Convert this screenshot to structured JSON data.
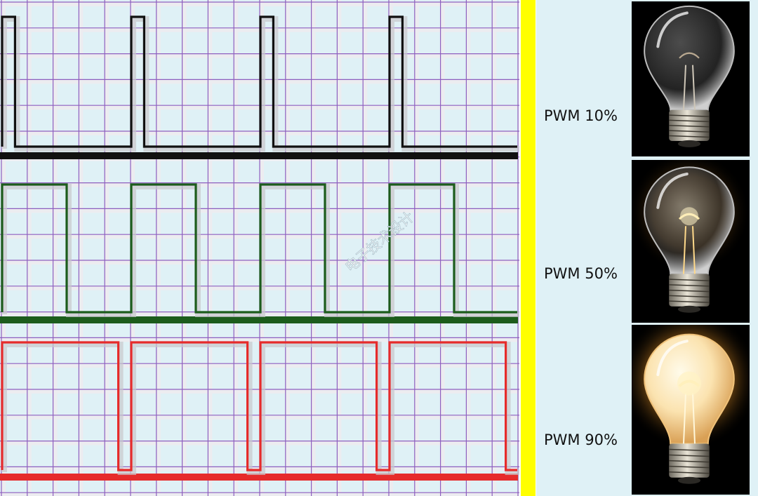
{
  "colors": {
    "background": "#dff1f6",
    "grid": "#8e5fbf",
    "divider": "#ffff00",
    "bulb_panel": "#000000"
  },
  "waveforms": [
    {
      "name": "pwm-10",
      "color": "#111111",
      "duty": 0.1,
      "periods": 4
    },
    {
      "name": "pwm-50",
      "color": "#1c5c1c",
      "duty": 0.5,
      "periods": 4
    },
    {
      "name": "pwm-90",
      "color": "#e62b2b",
      "duty": 0.9,
      "periods": 4
    }
  ],
  "bulbs": [
    {
      "label": "PWM 10%",
      "brightness": 0.1,
      "icon": "light-bulb-dim-icon"
    },
    {
      "label": "PWM 50%",
      "brightness": 0.5,
      "icon": "light-bulb-medium-icon"
    },
    {
      "label": "PWM 90%",
      "brightness": 0.9,
      "icon": "light-bulb-bright-icon"
    }
  ],
  "watermark": "电子技术设计"
}
